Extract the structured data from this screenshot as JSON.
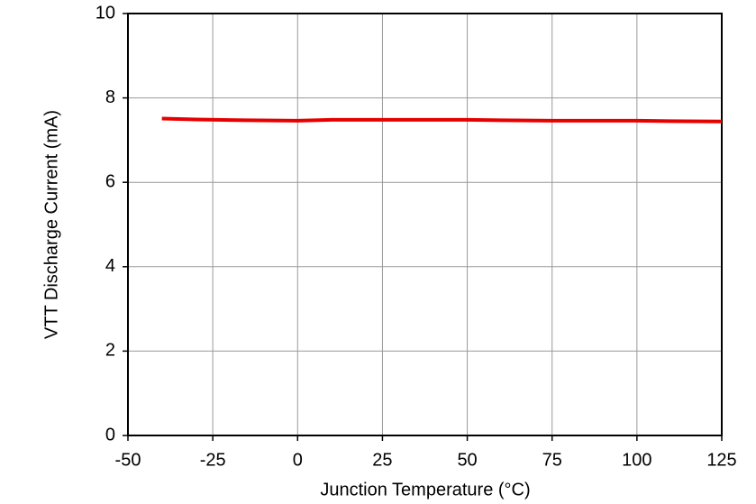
{
  "chart_data": {
    "type": "line",
    "xlabel": "Junction Temperature (°C)",
    "ylabel": "VTT Discharge Current (mA)",
    "x": [
      -40,
      -30,
      -15,
      0,
      10,
      25,
      50,
      60,
      75,
      100,
      110,
      125
    ],
    "series": [
      {
        "color": "#e60000",
        "values": [
          7.51,
          7.49,
          7.47,
          7.46,
          7.48,
          7.48,
          7.48,
          7.47,
          7.46,
          7.46,
          7.45,
          7.44
        ]
      }
    ],
    "xlim": [
      -50,
      125
    ],
    "xticks": [
      -50,
      -25,
      0,
      25,
      50,
      75,
      100,
      125
    ],
    "ylim": [
      0,
      10
    ],
    "yticks": [
      0,
      2,
      4,
      6,
      8,
      10
    ],
    "grid": true
  }
}
